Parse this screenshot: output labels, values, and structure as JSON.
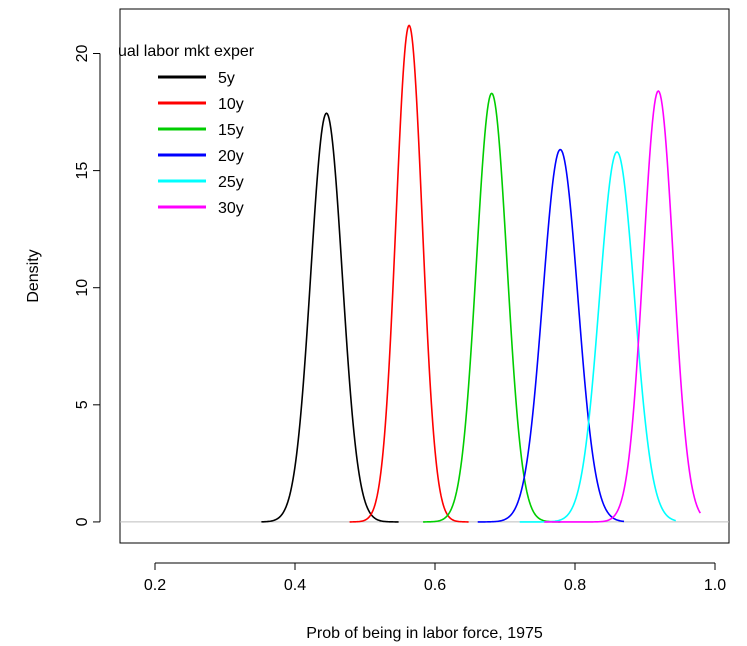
{
  "chart_data": {
    "type": "line",
    "title": "",
    "xlabel": "Prob of being in labor force, 1975",
    "ylabel": "Density",
    "xlim": [
      0.15,
      1.02
    ],
    "ylim": [
      -0.9,
      21.9
    ],
    "x_ticks": [
      0.2,
      0.4,
      0.6,
      0.8,
      1.0
    ],
    "x_tick_labels": [
      "0.2",
      "0.4",
      "0.6",
      "0.8",
      "1.0"
    ],
    "y_ticks": [
      0,
      5,
      10,
      15,
      20
    ],
    "y_tick_labels": [
      "0",
      "5",
      "10",
      "15",
      "20"
    ],
    "baseline": 0,
    "baseline_color": "#bebebe",
    "legend": {
      "title": "ual labor mkt exper",
      "position": "top-left"
    },
    "series": [
      {
        "name": "5y",
        "color": "#000000",
        "mean": 0.445,
        "sd": 0.0225,
        "peak": 17.45,
        "xmin": 0.352,
        "xmax": 0.548
      },
      {
        "name": "10y",
        "color": "#ff0000",
        "mean": 0.563,
        "sd": 0.0188,
        "peak": 21.2,
        "xmin": 0.478,
        "xmax": 0.648
      },
      {
        "name": "15y",
        "color": "#00cd00",
        "mean": 0.681,
        "sd": 0.0218,
        "peak": 18.3,
        "xmin": 0.583,
        "xmax": 0.779
      },
      {
        "name": "20y",
        "color": "#0000ff",
        "mean": 0.779,
        "sd": 0.025,
        "peak": 15.9,
        "xmin": 0.661,
        "xmax": 0.87
      },
      {
        "name": "25y",
        "color": "#00ffff",
        "mean": 0.86,
        "sd": 0.025,
        "peak": 15.8,
        "xmin": 0.721,
        "xmax": 0.944
      },
      {
        "name": "30y",
        "color": "#ff00ff",
        "mean": 0.919,
        "sd": 0.0215,
        "peak": 18.4,
        "xmin": 0.756,
        "xmax": 0.979
      }
    ]
  }
}
